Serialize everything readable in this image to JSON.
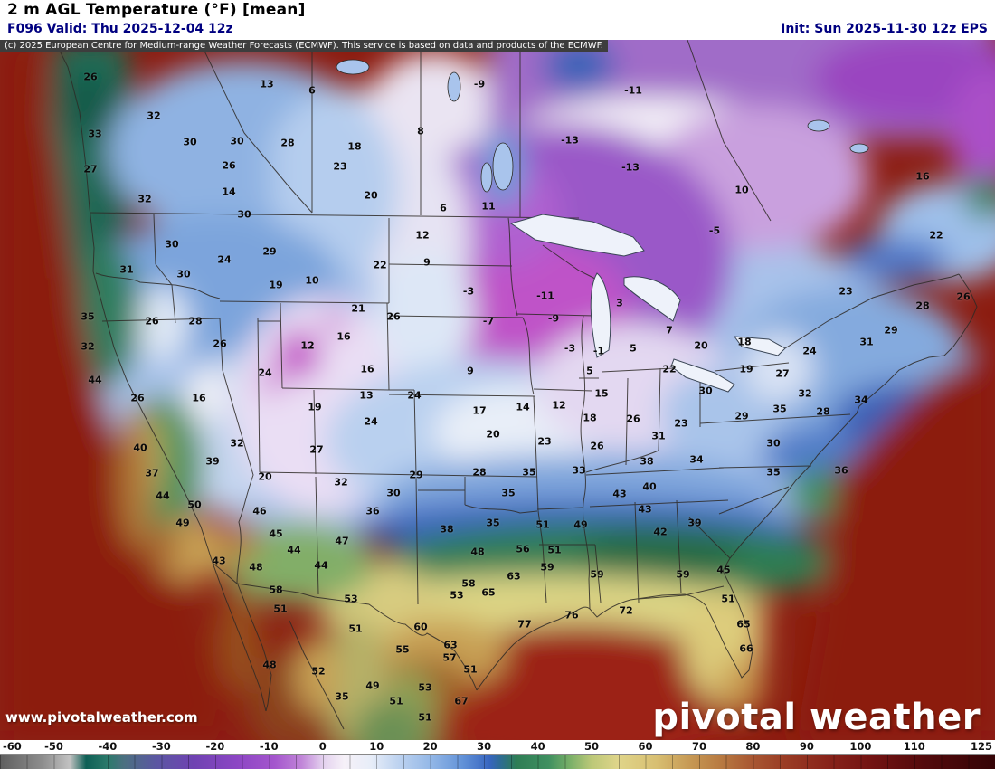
{
  "header": {
    "title": "2 m AGL Temperature (°F) [mean]",
    "valid": "F096 Valid: Thu 2025-12-04 12z",
    "init": "Init: Sun 2025-11-30 12z EPS"
  },
  "copyright": "(c) 2025 European Centre for Medium-range Weather Forecasts (ECMWF). This service is based on data and products of the ECMWF.",
  "watermark": {
    "url": "www.pivotalweather.com",
    "logo": "pivotal weather"
  },
  "colorbar": {
    "units": "°F",
    "min": -60,
    "max": 125,
    "ticks": [
      -60,
      -50,
      -40,
      -30,
      -20,
      -10,
      0,
      10,
      20,
      30,
      40,
      50,
      60,
      70,
      80,
      90,
      100,
      110,
      125
    ],
    "gradient_stops": [
      [
        -60,
        "#5f5f5f"
      ],
      [
        -52,
        "#8e8e8e"
      ],
      [
        -47,
        "#c2c2c2"
      ],
      [
        -44,
        "#0e5f55"
      ],
      [
        -40,
        "#2b7a6b"
      ],
      [
        -37,
        "#4b7080"
      ],
      [
        -31,
        "#5b57a2"
      ],
      [
        -24,
        "#6f42b2"
      ],
      [
        -16,
        "#8c46c4"
      ],
      [
        -9,
        "#a455cd"
      ],
      [
        -4,
        "#c084d8"
      ],
      [
        0,
        "#e3d0ee"
      ],
      [
        4,
        "#f6f1f8"
      ],
      [
        9,
        "#e7edf8"
      ],
      [
        14,
        "#bed3f0"
      ],
      [
        20,
        "#94b8e7"
      ],
      [
        26,
        "#6292d8"
      ],
      [
        31,
        "#3765c0"
      ],
      [
        33,
        "#2e6c94"
      ],
      [
        36,
        "#2e7d55"
      ],
      [
        42,
        "#3f9060"
      ],
      [
        46,
        "#7ab068"
      ],
      [
        50,
        "#bcc878"
      ],
      [
        55,
        "#e0d58a"
      ],
      [
        62,
        "#d8bf72"
      ],
      [
        68,
        "#c79a55"
      ],
      [
        74,
        "#b87a41"
      ],
      [
        80,
        "#a85632"
      ],
      [
        86,
        "#9a3c24"
      ],
      [
        94,
        "#88231a"
      ],
      [
        102,
        "#731312"
      ],
      [
        112,
        "#530a0c"
      ],
      [
        125,
        "#350406"
      ]
    ]
  },
  "map": {
    "variable": "2 m AGL Temperature (°F) [mean]",
    "station_values": [
      [
        100,
        85,
        "26"
      ],
      [
        295,
        93,
        "13"
      ],
      [
        345,
        100,
        "6"
      ],
      [
        530,
        93,
        "-9"
      ],
      [
        700,
        100,
        "-11"
      ],
      [
        465,
        145,
        "8"
      ],
      [
        630,
        155,
        "-13"
      ],
      [
        170,
        128,
        "32"
      ],
      [
        105,
        148,
        "33"
      ],
      [
        210,
        157,
        "30"
      ],
      [
        262,
        156,
        "30"
      ],
      [
        318,
        158,
        "28"
      ],
      [
        392,
        162,
        "18"
      ],
      [
        253,
        183,
        "26"
      ],
      [
        376,
        184,
        "23"
      ],
      [
        697,
        185,
        "-13"
      ],
      [
        100,
        187,
        "27"
      ],
      [
        160,
        220,
        "32"
      ],
      [
        253,
        212,
        "14"
      ],
      [
        410,
        216,
        "20"
      ],
      [
        490,
        230,
        "6"
      ],
      [
        540,
        228,
        "11"
      ],
      [
        820,
        210,
        "10"
      ],
      [
        1020,
        195,
        "16"
      ],
      [
        270,
        237,
        "30"
      ],
      [
        467,
        260,
        "12"
      ],
      [
        790,
        255,
        "-5"
      ],
      [
        1035,
        260,
        "22"
      ],
      [
        190,
        270,
        "30"
      ],
      [
        248,
        287,
        "24"
      ],
      [
        298,
        278,
        "29"
      ],
      [
        420,
        293,
        "22"
      ],
      [
        472,
        290,
        "9"
      ],
      [
        140,
        298,
        "31"
      ],
      [
        203,
        303,
        "30"
      ],
      [
        305,
        315,
        "19"
      ],
      [
        345,
        310,
        "10"
      ],
      [
        518,
        322,
        "-3"
      ],
      [
        603,
        327,
        "-11"
      ],
      [
        685,
        335,
        "3"
      ],
      [
        935,
        322,
        "23"
      ],
      [
        1065,
        328,
        "26"
      ],
      [
        1020,
        338,
        "28"
      ],
      [
        396,
        341,
        "21"
      ],
      [
        435,
        350,
        "26"
      ],
      [
        97,
        350,
        "35"
      ],
      [
        168,
        355,
        "26"
      ],
      [
        216,
        355,
        "28"
      ],
      [
        540,
        355,
        "-7"
      ],
      [
        612,
        352,
        "-9"
      ],
      [
        740,
        365,
        "7"
      ],
      [
        985,
        365,
        "29"
      ],
      [
        380,
        372,
        "16"
      ],
      [
        775,
        382,
        "20"
      ],
      [
        823,
        378,
        "18"
      ],
      [
        340,
        382,
        "12"
      ],
      [
        97,
        383,
        "32"
      ],
      [
        243,
        380,
        "26"
      ],
      [
        630,
        385,
        "-3"
      ],
      [
        662,
        388,
        "-1"
      ],
      [
        700,
        385,
        "5"
      ],
      [
        895,
        388,
        "24"
      ],
      [
        958,
        378,
        "31"
      ],
      [
        105,
        420,
        "44"
      ],
      [
        293,
        412,
        "24"
      ],
      [
        406,
        408,
        "16"
      ],
      [
        520,
        410,
        "9"
      ],
      [
        652,
        410,
        "5"
      ],
      [
        740,
        408,
        "22"
      ],
      [
        825,
        408,
        "19"
      ],
      [
        865,
        413,
        "27"
      ],
      [
        780,
        432,
        "30"
      ],
      [
        890,
        435,
        "32"
      ],
      [
        152,
        440,
        "26"
      ],
      [
        220,
        440,
        "16"
      ],
      [
        405,
        437,
        "13"
      ],
      [
        458,
        437,
        "24"
      ],
      [
        665,
        435,
        "15"
      ],
      [
        348,
        450,
        "19"
      ],
      [
        530,
        454,
        "17"
      ],
      [
        578,
        450,
        "14"
      ],
      [
        618,
        448,
        "12"
      ],
      [
        952,
        442,
        "34"
      ],
      [
        862,
        452,
        "35"
      ],
      [
        910,
        455,
        "28"
      ],
      [
        820,
        460,
        "29"
      ],
      [
        652,
        462,
        "18"
      ],
      [
        700,
        463,
        "26"
      ],
      [
        753,
        468,
        "23"
      ],
      [
        410,
        466,
        "24"
      ],
      [
        545,
        480,
        "20"
      ],
      [
        728,
        482,
        "31"
      ],
      [
        602,
        488,
        "23"
      ],
      [
        660,
        493,
        "26"
      ],
      [
        855,
        490,
        "30"
      ],
      [
        155,
        495,
        "40"
      ],
      [
        262,
        490,
        "32"
      ],
      [
        350,
        497,
        "27"
      ],
      [
        715,
        510,
        "38"
      ],
      [
        770,
        508,
        "34"
      ],
      [
        235,
        510,
        "39"
      ],
      [
        168,
        523,
        "37"
      ],
      [
        293,
        527,
        "20"
      ],
      [
        460,
        525,
        "29"
      ],
      [
        530,
        522,
        "28"
      ],
      [
        585,
        522,
        "35"
      ],
      [
        640,
        520,
        "33"
      ],
      [
        855,
        522,
        "35"
      ],
      [
        930,
        520,
        "36"
      ],
      [
        718,
        538,
        "40"
      ],
      [
        377,
        533,
        "32"
      ],
      [
        435,
        545,
        "30"
      ],
      [
        562,
        545,
        "35"
      ],
      [
        685,
        546,
        "43"
      ],
      [
        180,
        548,
        "44"
      ],
      [
        215,
        558,
        "50"
      ],
      [
        287,
        565,
        "46"
      ],
      [
        412,
        565,
        "36"
      ],
      [
        713,
        563,
        "43"
      ],
      [
        768,
        578,
        "39"
      ],
      [
        202,
        578,
        "49"
      ],
      [
        545,
        578,
        "35"
      ],
      [
        600,
        580,
        "51"
      ],
      [
        642,
        580,
        "49"
      ],
      [
        305,
        590,
        "45"
      ],
      [
        494,
        585,
        "38"
      ],
      [
        730,
        588,
        "42"
      ],
      [
        378,
        598,
        "47"
      ],
      [
        325,
        608,
        "44"
      ],
      [
        528,
        610,
        "48"
      ],
      [
        578,
        607,
        "56"
      ],
      [
        613,
        608,
        "51"
      ],
      [
        605,
        627,
        "59"
      ],
      [
        568,
        637,
        "63"
      ],
      [
        242,
        620,
        "43"
      ],
      [
        283,
        627,
        "48"
      ],
      [
        355,
        625,
        "44"
      ],
      [
        800,
        630,
        "45"
      ],
      [
        755,
        635,
        "59"
      ],
      [
        660,
        635,
        "59"
      ],
      [
        518,
        645,
        "58"
      ],
      [
        540,
        655,
        "65"
      ],
      [
        505,
        658,
        "53"
      ],
      [
        305,
        652,
        "58"
      ],
      [
        388,
        662,
        "53"
      ],
      [
        805,
        662,
        "51"
      ],
      [
        310,
        673,
        "51"
      ],
      [
        692,
        675,
        "72"
      ],
      [
        632,
        680,
        "76"
      ],
      [
        580,
        690,
        "77"
      ],
      [
        393,
        695,
        "51"
      ],
      [
        465,
        693,
        "60"
      ],
      [
        822,
        690,
        "65"
      ],
      [
        445,
        718,
        "55"
      ],
      [
        498,
        713,
        "63"
      ],
      [
        497,
        727,
        "57"
      ],
      [
        520,
        740,
        "51"
      ],
      [
        825,
        717,
        "66"
      ],
      [
        298,
        735,
        "48"
      ],
      [
        352,
        742,
        "52"
      ],
      [
        378,
        770,
        "35"
      ],
      [
        412,
        758,
        "49"
      ],
      [
        470,
        760,
        "53"
      ],
      [
        438,
        775,
        "51"
      ],
      [
        510,
        775,
        "67"
      ],
      [
        470,
        793,
        "51"
      ]
    ]
  }
}
